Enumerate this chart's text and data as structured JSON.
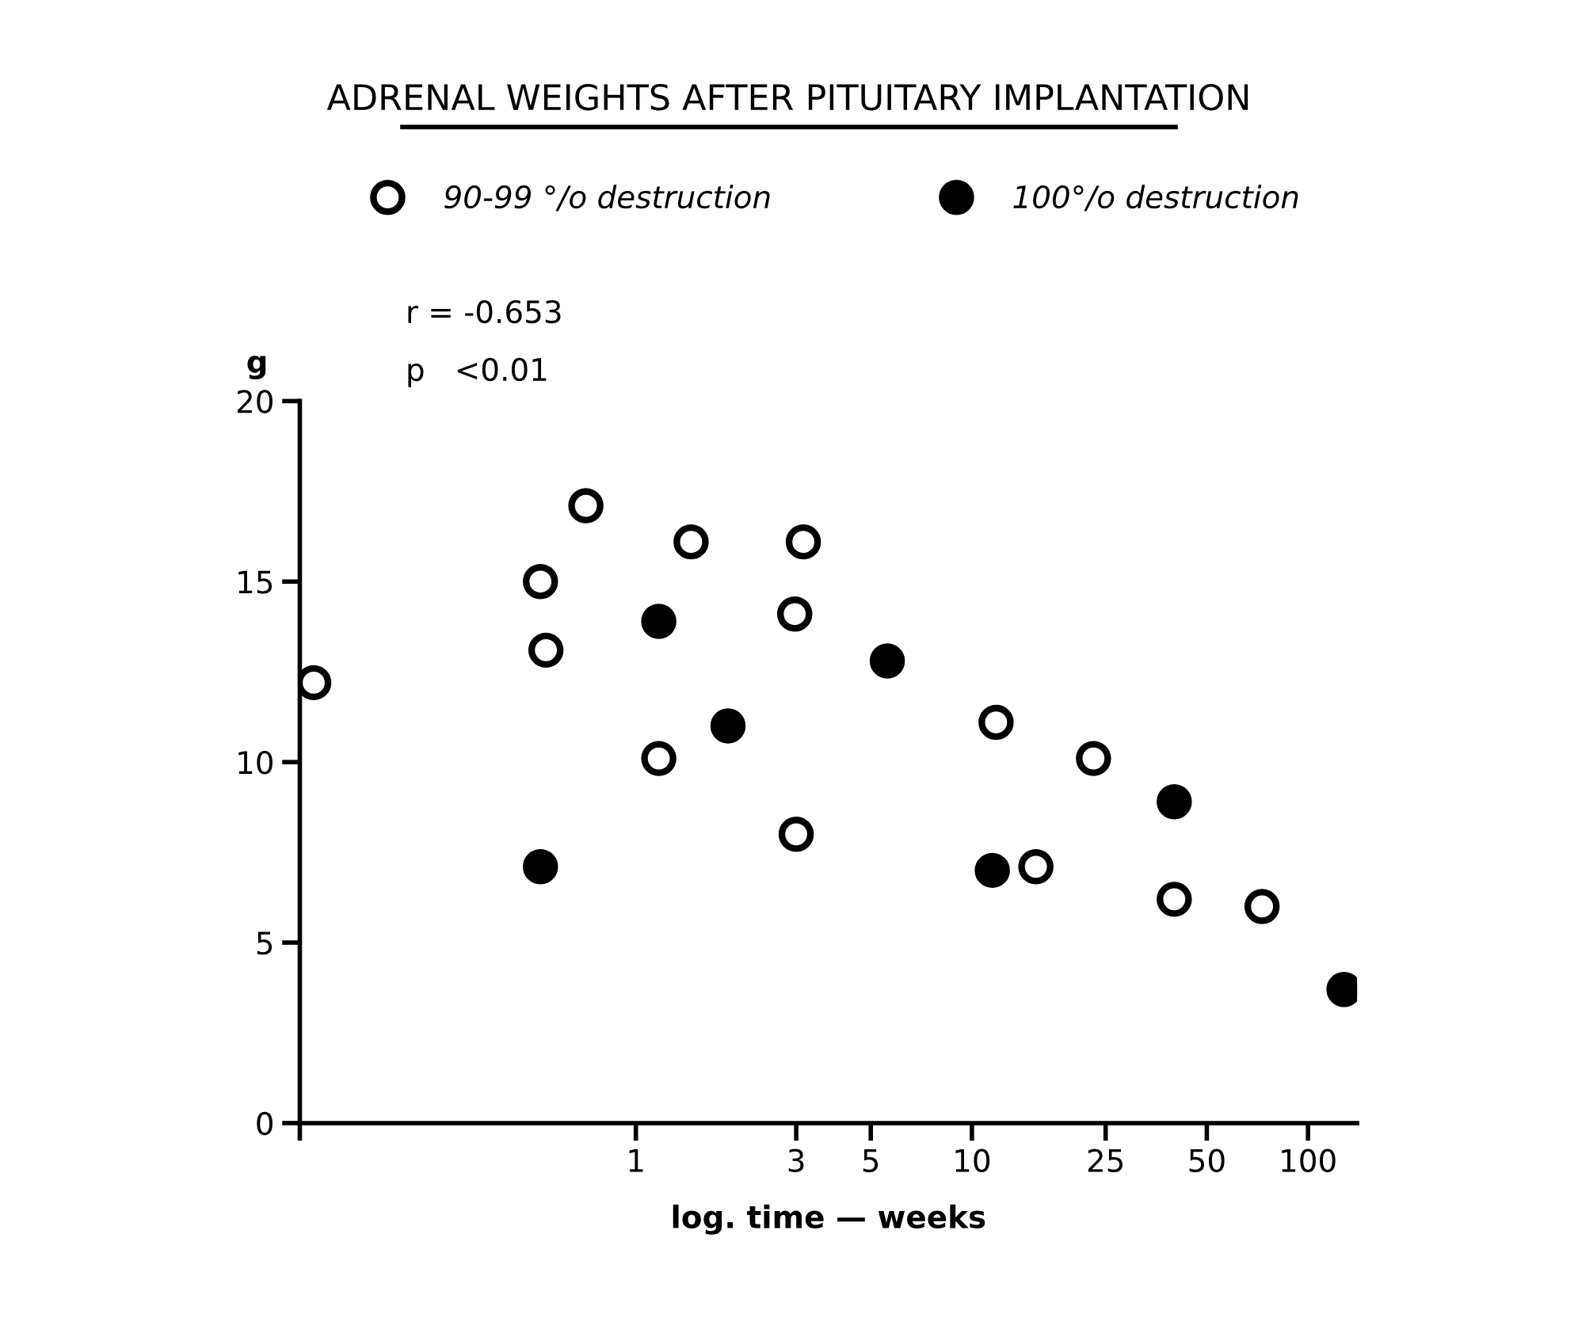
{
  "chart_data": {
    "type": "scatter",
    "title": "ADRENAL WEIGHTS AFTER PITUITARY IMPLANTATION",
    "xlabel": "log. time — weeks",
    "ylabel": "g",
    "log": "x",
    "xlim": [
      0.1,
      140
    ],
    "xticks": [
      {
        "value": 0.1,
        "label": null
      },
      1,
      3,
      5,
      10,
      25,
      50,
      100
    ],
    "ylim": [
      0,
      20
    ],
    "yticks": [
      0,
      5,
      10,
      15,
      20
    ],
    "legend": "top",
    "marker": "circle",
    "grid": false,
    "annotations": [
      "r = -0.653",
      "p   <0.01"
    ],
    "series": [
      {
        "name": "90-99 °/o destruction",
        "color": "#000000",
        "x": [
          0.11,
          0.71,
          0.52,
          0.54,
          1.46,
          1.17,
          3.15,
          2.97,
          3.0,
          11.8,
          23,
          15.5,
          40,
          73
        ],
        "values": [
          12.2,
          17.1,
          15.0,
          13.1,
          16.1,
          10.1,
          16.1,
          14.1,
          8.0,
          11.1,
          10.1,
          7.1,
          6.2,
          6.0
        ]
      },
      {
        "name": "100°/o destruction",
        "color": "#000000",
        "x": [
          0.52,
          1.17,
          1.88,
          5.6,
          11.5,
          40,
          128
        ],
        "values": [
          7.1,
          13.9,
          11.0,
          12.8,
          7.0,
          8.9,
          3.7
        ]
      }
    ]
  }
}
